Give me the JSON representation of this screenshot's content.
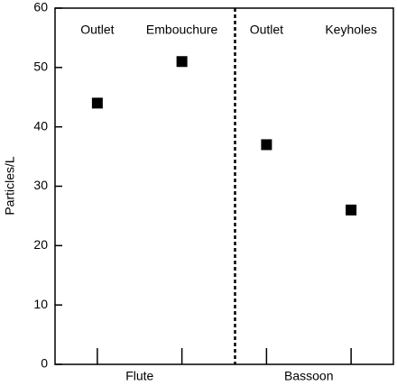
{
  "chart_data": {
    "type": "dot",
    "y_label": "Particles/L",
    "categories": [
      "Outlet",
      "Embouchure",
      "Outlet",
      "Keyholes"
    ],
    "groups": [
      "Flute",
      "Bassoon"
    ],
    "values": [
      44,
      51,
      37,
      26
    ],
    "color": "#000000",
    "ylim": [
      0,
      60
    ],
    "yticks": [
      0,
      10,
      20,
      30,
      40,
      50,
      60
    ],
    "grid": false
  }
}
